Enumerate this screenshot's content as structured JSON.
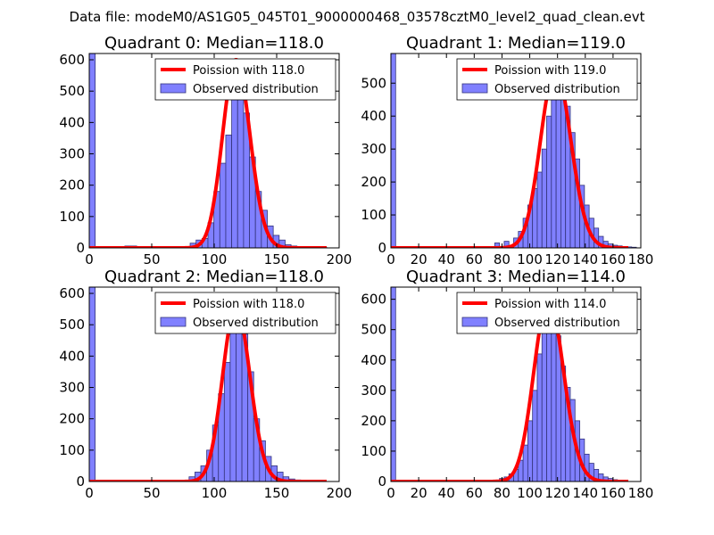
{
  "figure_title": "Data file: modeM0/AS1G05_045T01_9000000468_03578cztM0_level2_quad_clean.evt",
  "colors": {
    "poisson": "#ff0000",
    "bars_fill": "#8080ff",
    "bars_edge": "#33337a"
  },
  "chart_data": [
    {
      "type": "bar",
      "title": "Quadrant 0: Median=118.0",
      "median": 118.0,
      "legend": [
        "Poission with 118.0",
        "Observed distribution"
      ],
      "legend_position": "top-right",
      "xlim": [
        0,
        200
      ],
      "ylim": [
        0,
        620
      ],
      "xticks": [
        0,
        50,
        100,
        150,
        200
      ],
      "yticks": [
        0,
        100,
        200,
        300,
        400,
        500,
        600
      ],
      "bin_width": 4.75,
      "bins": [
        {
          "x": 0,
          "v": 620
        },
        {
          "x": 28.5,
          "v": 6
        },
        {
          "x": 33.25,
          "v": 6
        },
        {
          "x": 66.5,
          "v": 4
        },
        {
          "x": 76,
          "v": 4
        },
        {
          "x": 80.75,
          "v": 15
        },
        {
          "x": 85.5,
          "v": 25
        },
        {
          "x": 90.25,
          "v": 30
        },
        {
          "x": 95,
          "v": 80
        },
        {
          "x": 99.75,
          "v": 180
        },
        {
          "x": 104.5,
          "v": 270
        },
        {
          "x": 109.25,
          "v": 360
        },
        {
          "x": 114,
          "v": 520
        },
        {
          "x": 118.75,
          "v": 600
        },
        {
          "x": 123.5,
          "v": 430
        },
        {
          "x": 128.25,
          "v": 290
        },
        {
          "x": 133,
          "v": 180
        },
        {
          "x": 137.75,
          "v": 120
        },
        {
          "x": 142.5,
          "v": 70
        },
        {
          "x": 147.25,
          "v": 40
        },
        {
          "x": 152,
          "v": 25
        },
        {
          "x": 156.75,
          "v": 10
        },
        {
          "x": 161.5,
          "v": 6
        },
        {
          "x": 166.25,
          "v": 4
        },
        {
          "x": 171,
          "v": 3
        },
        {
          "x": 175.75,
          "v": 2
        },
        {
          "x": 180.5,
          "v": 2
        },
        {
          "x": 185.25,
          "v": 2
        }
      ]
    },
    {
      "type": "bar",
      "title": "Quadrant 1: Median=119.0",
      "median": 119.0,
      "legend": [
        "Poission with 119.0",
        "Observed distribution"
      ],
      "legend_position": "top-right",
      "xlim": [
        0,
        180
      ],
      "ylim": [
        0,
        590
      ],
      "xticks": [
        0,
        20,
        40,
        60,
        80,
        100,
        120,
        140,
        160,
        180
      ],
      "yticks": [
        0,
        100,
        200,
        300,
        400,
        500
      ],
      "bin_width": 3.4,
      "bins": [
        {
          "x": 0,
          "v": 590
        },
        {
          "x": 74.8,
          "v": 15
        },
        {
          "x": 81.6,
          "v": 20
        },
        {
          "x": 88.4,
          "v": 30
        },
        {
          "x": 91.8,
          "v": 50
        },
        {
          "x": 95.2,
          "v": 90
        },
        {
          "x": 98.6,
          "v": 130
        },
        {
          "x": 102,
          "v": 180
        },
        {
          "x": 105.4,
          "v": 230
        },
        {
          "x": 108.8,
          "v": 300
        },
        {
          "x": 112.2,
          "v": 400
        },
        {
          "x": 115.6,
          "v": 450
        },
        {
          "x": 119,
          "v": 540
        },
        {
          "x": 122.4,
          "v": 500
        },
        {
          "x": 125.8,
          "v": 430
        },
        {
          "x": 129.2,
          "v": 350
        },
        {
          "x": 132.6,
          "v": 270
        },
        {
          "x": 136,
          "v": 190
        },
        {
          "x": 139.4,
          "v": 130
        },
        {
          "x": 142.8,
          "v": 90
        },
        {
          "x": 146.2,
          "v": 60
        },
        {
          "x": 149.6,
          "v": 35
        },
        {
          "x": 153,
          "v": 20
        },
        {
          "x": 156.4,
          "v": 12
        },
        {
          "x": 159.8,
          "v": 8
        },
        {
          "x": 163.2,
          "v": 6
        },
        {
          "x": 166.6,
          "v": 4
        },
        {
          "x": 170,
          "v": 3
        },
        {
          "x": 173.4,
          "v": 2
        }
      ]
    },
    {
      "type": "bar",
      "title": "Quadrant 2: Median=118.0",
      "median": 118.0,
      "legend": [
        "Poission with 118.0",
        "Observed distribution"
      ],
      "legend_position": "top-right",
      "xlim": [
        0,
        200
      ],
      "ylim": [
        0,
        620
      ],
      "xticks": [
        0,
        50,
        100,
        150,
        200
      ],
      "yticks": [
        0,
        100,
        200,
        300,
        400,
        500,
        600
      ],
      "bin_width": 4.7,
      "bins": [
        {
          "x": 0,
          "v": 620
        },
        {
          "x": 79.9,
          "v": 15
        },
        {
          "x": 84.6,
          "v": 30
        },
        {
          "x": 89.3,
          "v": 50
        },
        {
          "x": 94,
          "v": 100
        },
        {
          "x": 98.7,
          "v": 180
        },
        {
          "x": 103.4,
          "v": 280
        },
        {
          "x": 108.1,
          "v": 380
        },
        {
          "x": 112.8,
          "v": 510
        },
        {
          "x": 117.5,
          "v": 560
        },
        {
          "x": 122.2,
          "v": 470
        },
        {
          "x": 126.9,
          "v": 350
        },
        {
          "x": 131.6,
          "v": 200
        },
        {
          "x": 136.3,
          "v": 130
        },
        {
          "x": 141,
          "v": 80
        },
        {
          "x": 145.7,
          "v": 50
        },
        {
          "x": 150.4,
          "v": 30
        },
        {
          "x": 155.1,
          "v": 15
        },
        {
          "x": 159.8,
          "v": 8
        },
        {
          "x": 164.5,
          "v": 5
        },
        {
          "x": 169.2,
          "v": 3
        },
        {
          "x": 173.9,
          "v": 2
        },
        {
          "x": 178.6,
          "v": 2
        }
      ]
    },
    {
      "type": "bar",
      "title": "Quadrant 3: Median=114.0",
      "median": 114.0,
      "legend": [
        "Poission with 114.0",
        "Observed distribution"
      ],
      "legend_position": "top-right",
      "xlim": [
        0,
        180
      ],
      "ylim": [
        0,
        640
      ],
      "xticks": [
        0,
        20,
        40,
        60,
        80,
        100,
        120,
        140,
        160,
        180
      ],
      "yticks": [
        0,
        100,
        200,
        300,
        400,
        500,
        600
      ],
      "bin_width": 3.4,
      "bins": [
        {
          "x": 0,
          "v": 640
        },
        {
          "x": 78.2,
          "v": 10
        },
        {
          "x": 81.6,
          "v": 15
        },
        {
          "x": 85,
          "v": 25
        },
        {
          "x": 88.4,
          "v": 40
        },
        {
          "x": 91.8,
          "v": 70
        },
        {
          "x": 95.2,
          "v": 120
        },
        {
          "x": 98.6,
          "v": 200
        },
        {
          "x": 102,
          "v": 300
        },
        {
          "x": 105.4,
          "v": 420
        },
        {
          "x": 108.8,
          "v": 520
        },
        {
          "x": 112.2,
          "v": 600
        },
        {
          "x": 115.6,
          "v": 560
        },
        {
          "x": 119,
          "v": 480
        },
        {
          "x": 122.4,
          "v": 380
        },
        {
          "x": 125.8,
          "v": 310
        },
        {
          "x": 129.2,
          "v": 270
        },
        {
          "x": 132.6,
          "v": 200
        },
        {
          "x": 136,
          "v": 140
        },
        {
          "x": 139.4,
          "v": 90
        },
        {
          "x": 142.8,
          "v": 60
        },
        {
          "x": 146.2,
          "v": 40
        },
        {
          "x": 149.6,
          "v": 25
        },
        {
          "x": 153,
          "v": 15
        },
        {
          "x": 156.4,
          "v": 10
        },
        {
          "x": 159.8,
          "v": 6
        },
        {
          "x": 163.2,
          "v": 4
        },
        {
          "x": 166.6,
          "v": 3
        }
      ]
    }
  ]
}
